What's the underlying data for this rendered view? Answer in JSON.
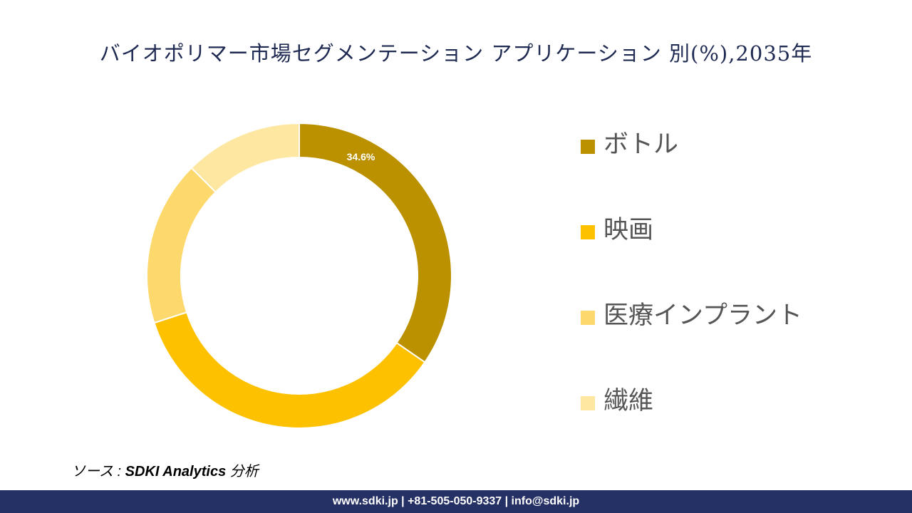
{
  "title": "バイオポリマー市場セグメンテーション アプリケーション 別(%),2035年",
  "chart_data": {
    "type": "pie",
    "variant": "donut",
    "categories": [
      "ボトル",
      "映画",
      "医療インプラント",
      "繊維"
    ],
    "values": [
      34.6,
      35.4,
      17.5,
      12.5
    ],
    "colors": [
      "#bb9100",
      "#fdc100",
      "#fdd86c",
      "#fde7a1"
    ],
    "data_labels": [
      "34.6%",
      "",
      "",
      ""
    ],
    "legend_position": "right"
  },
  "source": {
    "prefix": "ソース : ",
    "name": "SDKI Analytics",
    "suffix": " 分析"
  },
  "footer": "www.sdki.jp | +81-505-050-9337 | info@sdki.jp"
}
